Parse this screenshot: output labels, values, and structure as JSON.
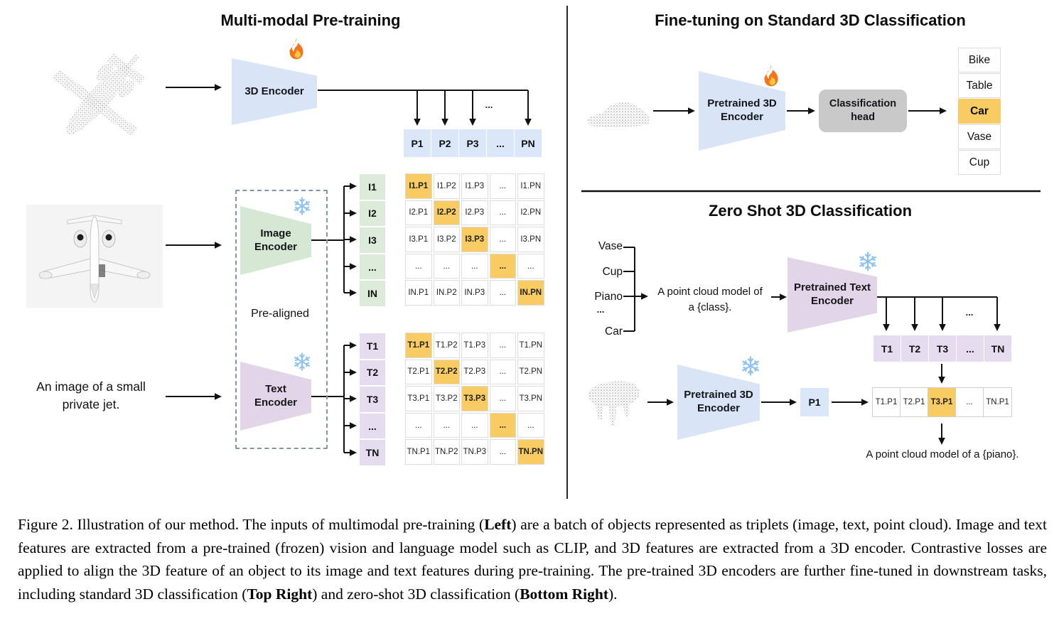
{
  "ellipsis": "...",
  "colors": {
    "blue": "#D9E5F7",
    "blue_cell": "#DAE7F8",
    "green": "#D5E8D4",
    "green_cell": "#DCEBDA",
    "purple": "#E1D5E7",
    "purple_cell": "#E6DCEF",
    "orange": "#F8CB63",
    "gray_head": "#C9C9C9"
  },
  "left_panel": {
    "title": "Multi-modal Pre-training",
    "encoder_3d_label": "3D Encoder",
    "image_encoder": {
      "line1": "Image",
      "line2": "Encoder"
    },
    "text_encoder": {
      "line1": "Text",
      "line2": "Encoder"
    },
    "pre_aligned_label": "Pre-aligned",
    "image_caption": {
      "line1": "An image of a small",
      "line2": "private jet."
    },
    "p_row": [
      "P1",
      "P2",
      "P3",
      "...",
      "PN"
    ],
    "i_column": [
      "I1",
      "I2",
      "I3",
      "...",
      "IN"
    ],
    "i_matrix": [
      [
        "I1.P1",
        "I1.P2",
        "I1.P3",
        "...",
        "I1.PN"
      ],
      [
        "I2.P1",
        "I2.P2",
        "I2.P3",
        "...",
        "I2.PN"
      ],
      [
        "I3.P1",
        "I3.P2",
        "I3.P3",
        "...",
        "I3.PN"
      ],
      [
        "...",
        "...",
        "...",
        "...",
        "..."
      ],
      [
        "IN.P1",
        "IN.P2",
        "IN.P3",
        "...",
        "IN.PN"
      ]
    ],
    "t_column": [
      "T1",
      "T2",
      "T3",
      "...",
      "TN"
    ],
    "t_matrix": [
      [
        "T1.P1",
        "T1.P2",
        "T1.P3",
        "...",
        "T1.PN"
      ],
      [
        "T2.P1",
        "T2.P2",
        "T2.P3",
        "...",
        "T2.PN"
      ],
      [
        "T3.P1",
        "T3.P2",
        "T3.P3",
        "...",
        "T3.PN"
      ],
      [
        "...",
        "...",
        "...",
        "...",
        "..."
      ],
      [
        "TN.P1",
        "TN.P2",
        "TN.P3",
        "...",
        "TN.PN"
      ]
    ]
  },
  "top_right": {
    "title": "Fine-tuning on Standard 3D Classification",
    "encoder_label": {
      "line1": "Pretrained 3D",
      "line2": "Encoder"
    },
    "head_label": {
      "line1": "Classification",
      "line2": "head"
    },
    "classes": [
      "Bike",
      "Table",
      "Car",
      "Vase",
      "Cup"
    ],
    "predicted_class": "Car"
  },
  "bottom_right": {
    "title": "Zero Shot 3D Classification",
    "class_list": [
      "Vase",
      "Cup",
      "Piano",
      "...",
      "Car"
    ],
    "prompt": {
      "line1": "A point cloud model of",
      "line2": "a {class}."
    },
    "text_encoder_label": {
      "line1": "Pretrained Text",
      "line2": "Encoder"
    },
    "t_row": [
      "T1",
      "T2",
      "T3",
      "...",
      "TN"
    ],
    "encoder_3d_label": {
      "line1": "Pretrained 3D",
      "line2": "Encoder"
    },
    "p1_label": "P1",
    "result_row": [
      "T1.P1",
      "T2.P1",
      "T3.P1",
      "...",
      "TN.P1"
    ],
    "result_caption": "A point cloud model of a {piano}."
  },
  "caption": {
    "segments": [
      {
        "text": "Figure 2. Illustration of our method. The inputs of multimodal pre-training (",
        "bold": false
      },
      {
        "text": "Left",
        "bold": true
      },
      {
        "text": ") are a batch of objects represented as triplets (image, text, point cloud). Image and text features are extracted from a pre-trained (frozen) vision and language model such as CLIP, and 3D features are extracted from a 3D encoder. Contrastive losses are applied to align the 3D feature of an object to its image and text features during pre-training. The pre-trained 3D encoders are further fine-tuned in downstream tasks, including standard 3D classification (",
        "bold": false
      },
      {
        "text": "Top Right",
        "bold": true
      },
      {
        "text": ") and zero-shot 3D classification (",
        "bold": false
      },
      {
        "text": "Bottom Right",
        "bold": true
      },
      {
        "text": ").",
        "bold": false
      }
    ]
  }
}
